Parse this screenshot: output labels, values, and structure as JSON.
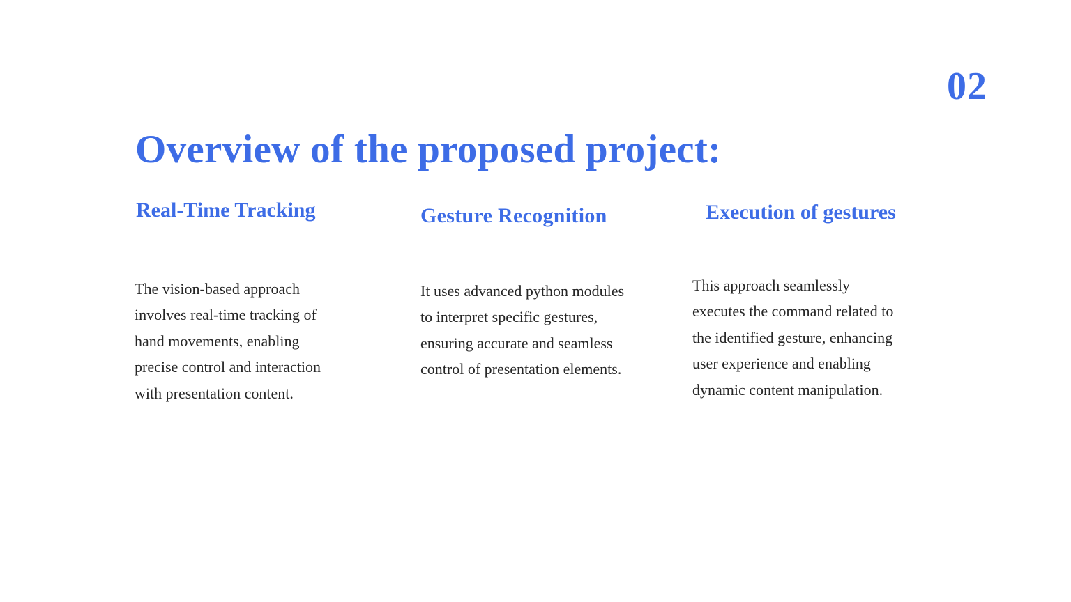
{
  "slide": {
    "page_number": "02",
    "title": "Overview of the proposed project:",
    "accent_color": "#3d6ce6",
    "text_color": "#262626",
    "columns": [
      {
        "heading": "Real-Time Tracking",
        "body_lines": [
          "The vision-based approach",
          "involves real-time tracking of",
          "hand movements, enabling",
          "precise control and interaction",
          "with presentation content."
        ]
      },
      {
        "heading": "Gesture Recognition",
        "body_lines": [
          "It uses advanced python modules",
          "to interpret specific gestures,",
          "ensuring accurate and seamless",
          "control of presentation elements."
        ]
      },
      {
        "heading": "Execution of gestures",
        "body_lines": [
          "This approach seamlessly",
          "executes the command related to",
          "the identified gesture, enhancing",
          "user experience and enabling",
          "dynamic content manipulation."
        ]
      }
    ]
  }
}
